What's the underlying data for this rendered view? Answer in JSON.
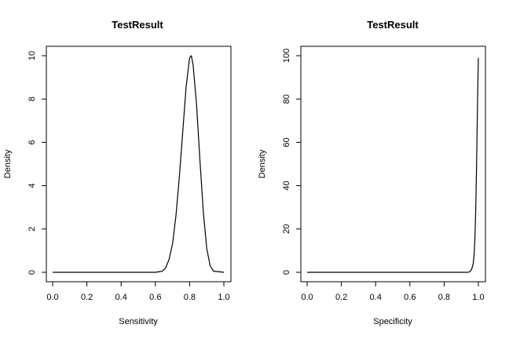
{
  "chart_data": [
    {
      "type": "line",
      "title": "TestResult",
      "xlabel": "Sensitivity",
      "ylabel": "Density",
      "xlim": [
        0,
        1
      ],
      "ylim": [
        0,
        10
      ],
      "x_ticks": [
        "0.0",
        "0.2",
        "0.4",
        "0.6",
        "0.8",
        "1.0"
      ],
      "y_ticks": [
        "0",
        "2",
        "4",
        "6",
        "8",
        "10"
      ],
      "grid": false,
      "series": [
        {
          "color": "#000000",
          "x": [
            0.0,
            0.6,
            0.64,
            0.66,
            0.68,
            0.7,
            0.72,
            0.74,
            0.76,
            0.78,
            0.8,
            0.81,
            0.82,
            0.84,
            0.86,
            0.88,
            0.9,
            0.92,
            0.94,
            1.0
          ],
          "y": [
            0,
            0,
            0.05,
            0.2,
            0.6,
            1.3,
            2.6,
            4.4,
            6.5,
            8.6,
            9.9,
            10.0,
            9.6,
            7.8,
            5.2,
            2.8,
            1.1,
            0.3,
            0.05,
            0
          ]
        }
      ]
    },
    {
      "type": "line",
      "title": "TestResult",
      "xlabel": "Specificity",
      "ylabel": "Density",
      "xlim": [
        0,
        1
      ],
      "ylim": [
        0,
        100
      ],
      "x_ticks": [
        "0.0",
        "0.2",
        "0.4",
        "0.6",
        "0.8",
        "1.0"
      ],
      "y_ticks": [
        "0",
        "20",
        "40",
        "60",
        "80",
        "100"
      ],
      "grid": false,
      "series": [
        {
          "color": "#000000",
          "x": [
            0.0,
            0.94,
            0.95,
            0.96,
            0.97,
            0.975,
            0.98,
            0.985,
            0.99,
            0.995,
            1.0
          ],
          "y": [
            0,
            0,
            0.3,
            1.2,
            4,
            8,
            16,
            30,
            52,
            78,
            99
          ]
        }
      ]
    }
  ]
}
